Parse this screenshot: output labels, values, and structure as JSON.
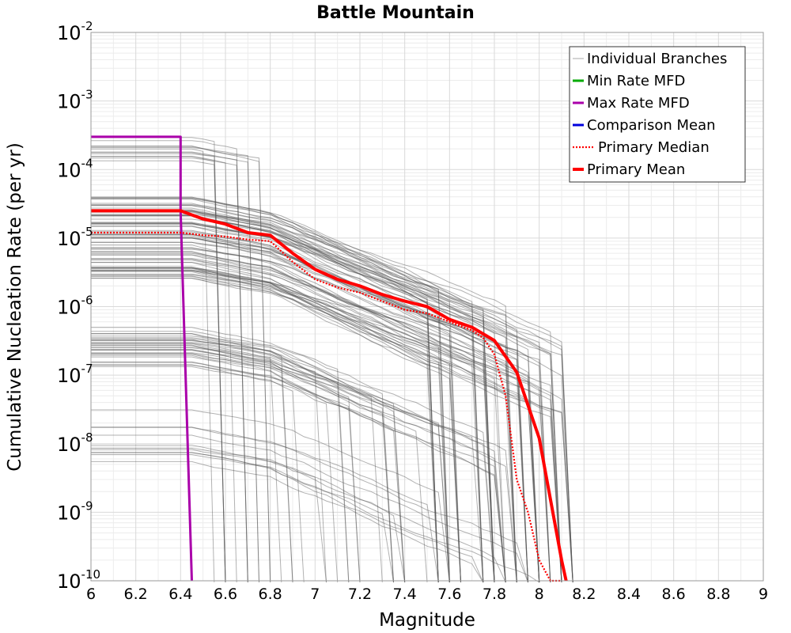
{
  "chart_data": {
    "type": "line",
    "title": "Battle Mountain",
    "xlabel": "Magnitude",
    "ylabel": "Cumulative Nucleation Rate (per yr)",
    "xlim": [
      6,
      9
    ],
    "ylim": [
      1e-10,
      0.01
    ],
    "yscale": "log",
    "grid": true,
    "legend_position": "top-right",
    "x_ticks": [
      "6",
      "6.2",
      "6.4",
      "6.6",
      "6.8",
      "7",
      "7.2",
      "7.4",
      "7.6",
      "7.8",
      "8",
      "8.2",
      "8.4",
      "8.6",
      "8.8",
      "9"
    ],
    "y_ticks": [
      {
        "base": "10",
        "exp": "-2"
      },
      {
        "base": "10",
        "exp": "-3"
      },
      {
        "base": "10",
        "exp": "-4"
      },
      {
        "base": "10",
        "exp": "-5"
      },
      {
        "base": "10",
        "exp": "-6"
      },
      {
        "base": "10",
        "exp": "-7"
      },
      {
        "base": "10",
        "exp": "-8"
      },
      {
        "base": "10",
        "exp": "-9"
      },
      {
        "base": "10",
        "exp": "-10"
      }
    ],
    "series": [
      {
        "name": "Individual Branches",
        "color": "#555555",
        "style": "thin-solid",
        "x": [],
        "y": []
      },
      {
        "name": "Min Rate MFD",
        "color": "#00aa00",
        "style": "solid",
        "x": [],
        "y": []
      },
      {
        "name": "Max Rate MFD",
        "color": "#aa00aa",
        "style": "solid",
        "x": [
          6.0,
          6.4,
          6.4,
          6.45
        ],
        "y": [
          0.0003,
          0.0003,
          2.5e-05,
          1e-10
        ]
      },
      {
        "name": "Comparison Mean",
        "color": "#0000dd",
        "style": "solid",
        "x": [],
        "y": []
      },
      {
        "name": "Primary Median",
        "color": "#ff0000",
        "style": "dotted",
        "x": [
          6.0,
          6.4,
          6.5,
          6.6,
          6.7,
          6.8,
          6.9,
          7.0,
          7.1,
          7.2,
          7.3,
          7.4,
          7.5,
          7.6,
          7.7,
          7.75,
          7.8,
          7.85,
          7.9,
          7.95,
          8.0,
          8.05,
          8.1
        ],
        "y": [
          1.2e-05,
          1.2e-05,
          1.1e-05,
          1.05e-05,
          9.5e-06,
          9e-06,
          4.5e-06,
          2.5e-06,
          1.9e-06,
          1.6e-06,
          1.2e-06,
          9e-07,
          8e-07,
          6e-07,
          4.5e-07,
          3.5e-07,
          2e-07,
          5e-08,
          3e-09,
          1e-09,
          2e-10,
          1e-10,
          1e-10
        ]
      },
      {
        "name": "Primary Mean",
        "color": "#ff0000",
        "style": "thick-solid",
        "x": [
          6.0,
          6.4,
          6.5,
          6.6,
          6.7,
          6.8,
          6.9,
          7.0,
          7.1,
          7.2,
          7.3,
          7.4,
          7.5,
          7.6,
          7.7,
          7.8,
          7.9,
          8.0,
          8.1,
          8.12
        ],
        "y": [
          2.5e-05,
          2.5e-05,
          1.9e-05,
          1.6e-05,
          1.2e-05,
          1.1e-05,
          6e-06,
          3.5e-06,
          2.5e-06,
          2e-06,
          1.5e-06,
          1.2e-06,
          1e-06,
          6.5e-07,
          5e-07,
          3.2e-07,
          1.1e-07,
          1.2e-08,
          2e-10,
          1e-10
        ]
      }
    ]
  }
}
